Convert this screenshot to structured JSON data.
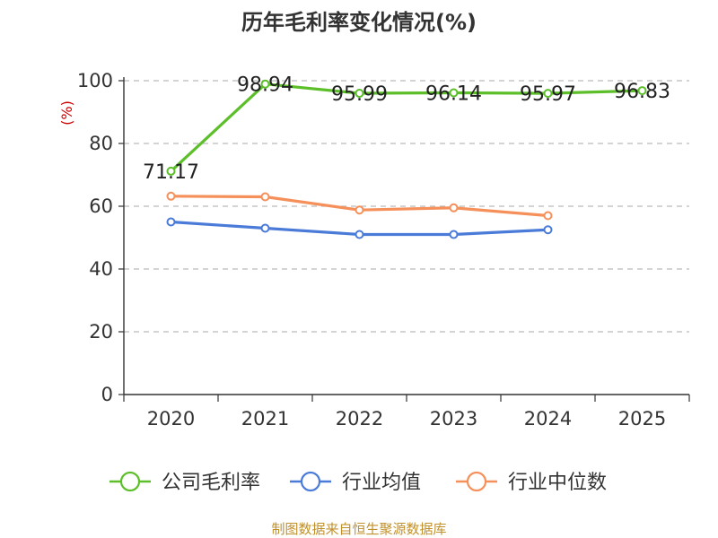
{
  "chart_data": {
    "type": "line",
    "title": "历年毛利率变化情况(%)",
    "ylabel": "(%)",
    "xlabel": "",
    "categories": [
      "2020",
      "2021",
      "2022",
      "2023",
      "2024",
      "2025"
    ],
    "ylim": [
      0,
      100
    ],
    "yticks": [
      0,
      20,
      40,
      60,
      80,
      100
    ],
    "grid": true,
    "legend_position": "bottom",
    "series": [
      {
        "name": "公司毛利率",
        "color": "#5cbf2a",
        "values": [
          71.17,
          98.94,
          95.99,
          96.14,
          95.97,
          96.83
        ],
        "labels": [
          "71.17",
          "98.94",
          "95.99",
          "96.14",
          "95.97",
          "96.83"
        ]
      },
      {
        "name": "行业均值",
        "color": "#4b7bd8",
        "values": [
          55.0,
          53.0,
          51.0,
          51.0,
          52.5,
          null
        ]
      },
      {
        "name": "行业中位数",
        "color": "#f5905a",
        "values": [
          63.2,
          63.0,
          58.8,
          59.5,
          57.0,
          null
        ]
      }
    ],
    "source": "制图数据来自恒生聚源数据库"
  }
}
